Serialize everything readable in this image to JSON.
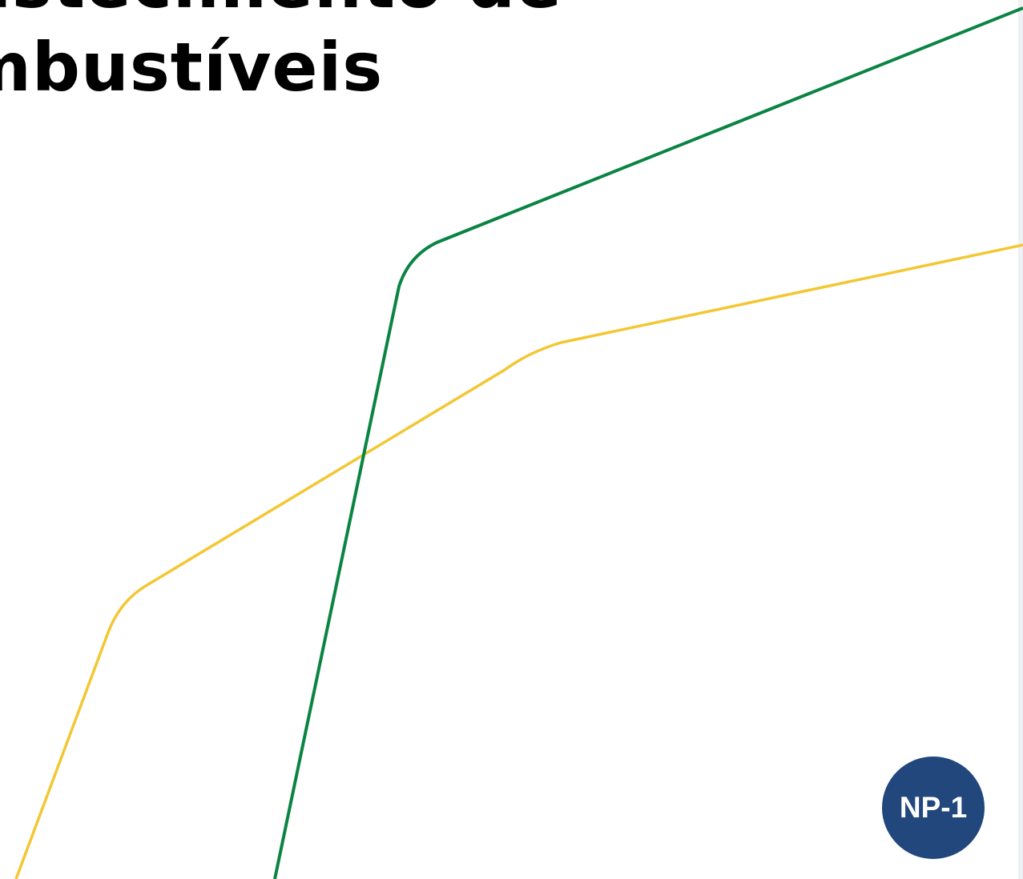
{
  "document": {
    "title_line_1": "Abastecimento de",
    "title_line_2": "Combustíveis",
    "badge_label": "NP-1"
  },
  "colors": {
    "background": "#ffffff",
    "green_line": "#0a8443",
    "yellow_line": "#f3c733",
    "badge": "#21477d",
    "title_text": "#000000"
  },
  "decorations": [
    {
      "name": "green-line",
      "color_key": "green_line"
    },
    {
      "name": "yellow-line",
      "color_key": "yellow_line"
    }
  ]
}
